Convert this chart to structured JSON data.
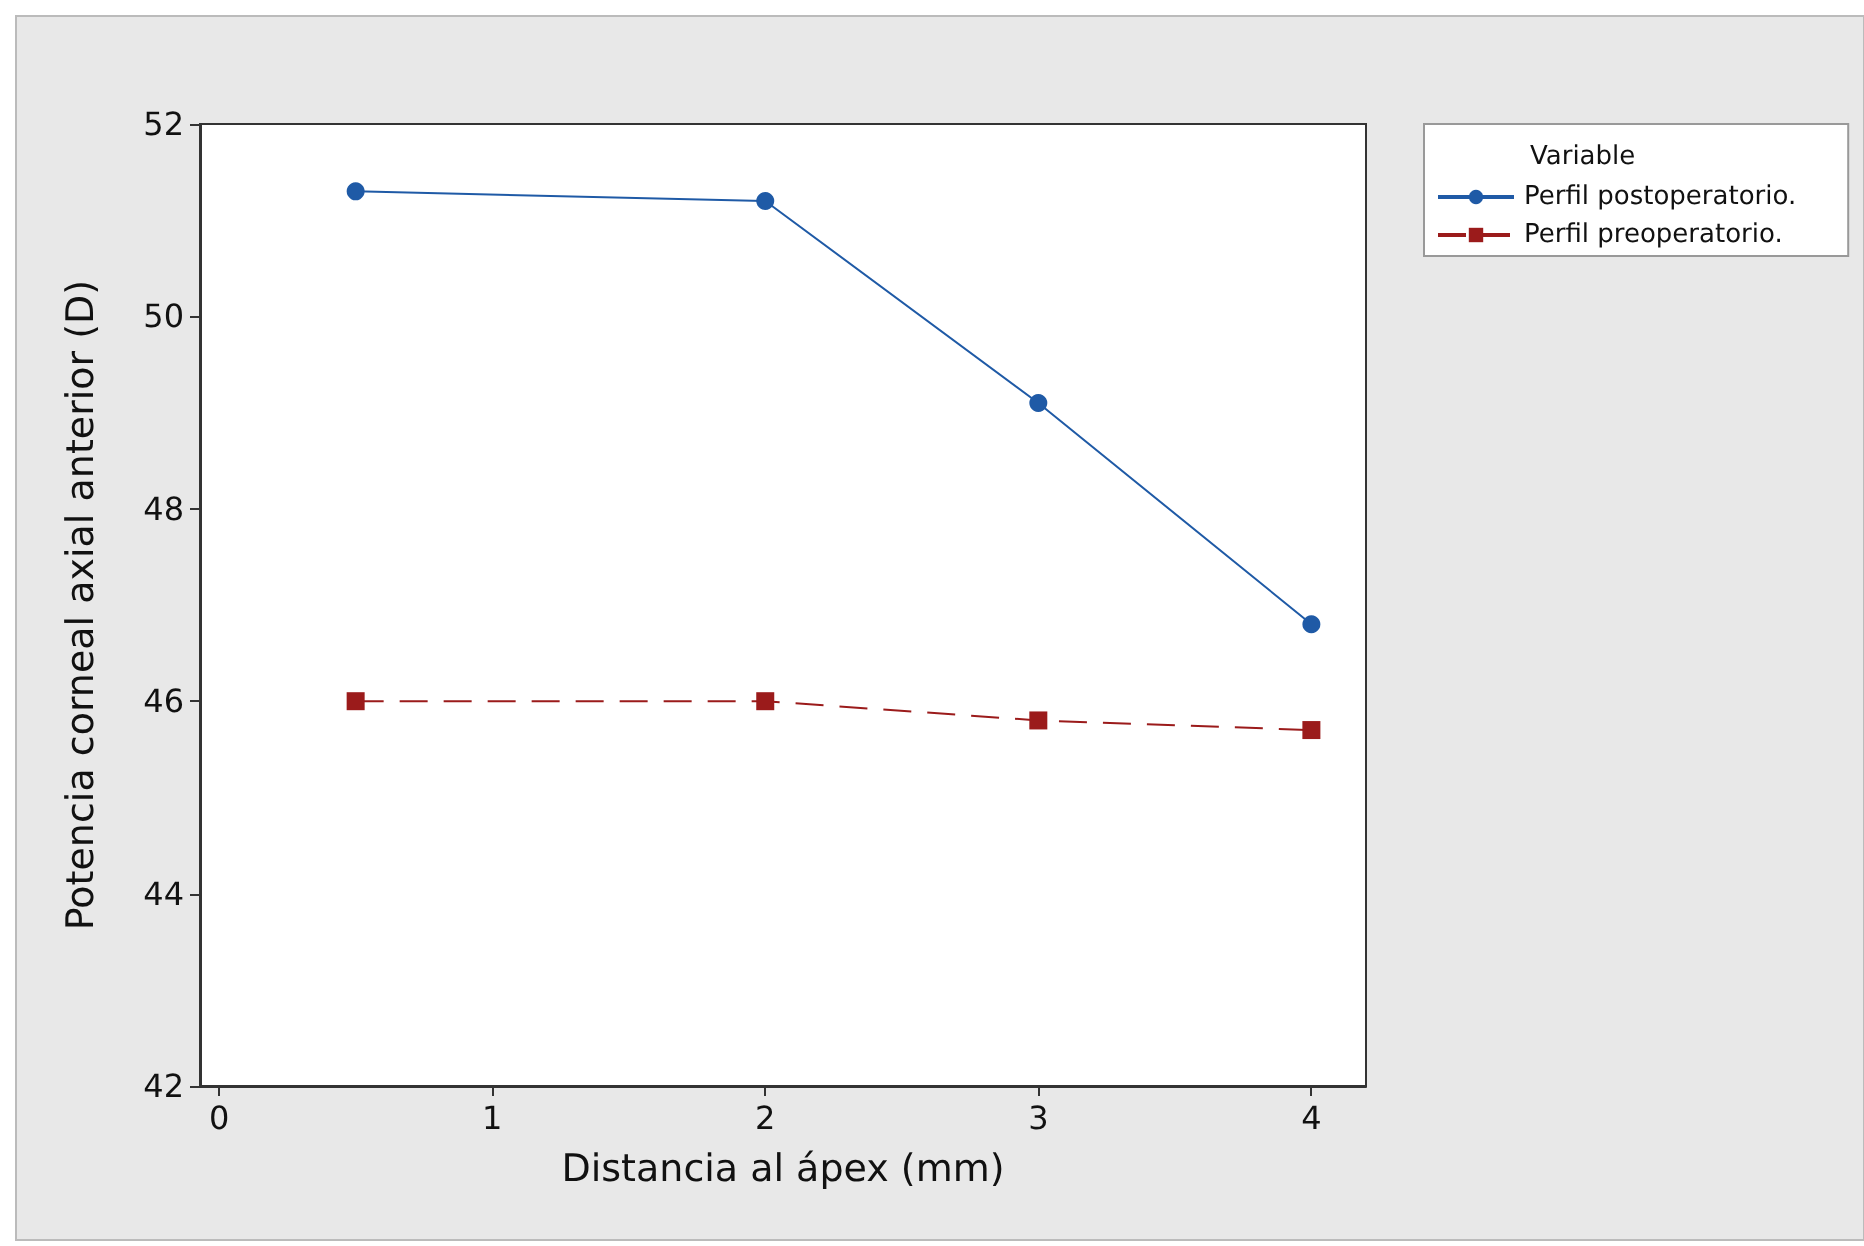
{
  "chart_data": {
    "type": "line",
    "xlabel": "Distancia al ápex (mm)",
    "ylabel": "Potencia corneal axial anterior (D)",
    "legend_title": "Variable",
    "x": [
      0.5,
      2,
      3,
      4
    ],
    "series": [
      {
        "name": "Perfil postoperatorio.",
        "color": "#1f5aa6",
        "values": [
          51.3,
          51.2,
          49.1,
          46.8
        ],
        "marker": "circle",
        "line_style": "solid"
      },
      {
        "name": "Perfil preoperatorio.",
        "color": "#9b1b1b",
        "values": [
          46.0,
          46.0,
          45.8,
          45.7
        ],
        "marker": "square",
        "line_style": "dashed"
      }
    ],
    "xlim": [
      -0.07,
      4.2
    ],
    "xticks": [
      0,
      1,
      2,
      3,
      4
    ],
    "ylim": [
      42,
      52
    ],
    "yticks": [
      42,
      44,
      46,
      48,
      50,
      52
    ],
    "grid": false,
    "legend": "top right"
  }
}
